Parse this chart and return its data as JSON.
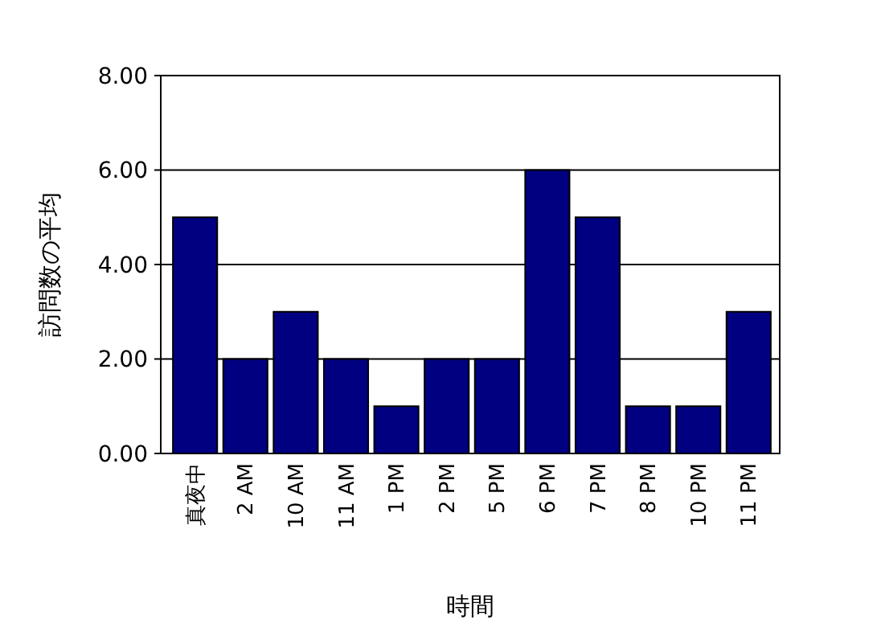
{
  "chart_data": {
    "type": "bar",
    "xlabel": "時間",
    "ylabel": "訪問数の平均",
    "categories": [
      "真夜中",
      "2 AM",
      "10 AM",
      "11 AM",
      "1 PM",
      "2 PM",
      "5 PM",
      "6 PM",
      "7 PM",
      "8 PM",
      "10 PM",
      "11 PM"
    ],
    "values": [
      5,
      2,
      3,
      2,
      1,
      2,
      2,
      6,
      5,
      1,
      1,
      3
    ],
    "color": "#000080",
    "ylim": [
      0,
      8
    ],
    "yticks": [
      {
        "value": 0,
        "label": "0.00"
      },
      {
        "value": 2,
        "label": "2.00"
      },
      {
        "value": 4,
        "label": "4.00"
      },
      {
        "value": 6,
        "label": "6.00"
      },
      {
        "value": 8,
        "label": "8.00"
      }
    ],
    "grid": "y"
  }
}
